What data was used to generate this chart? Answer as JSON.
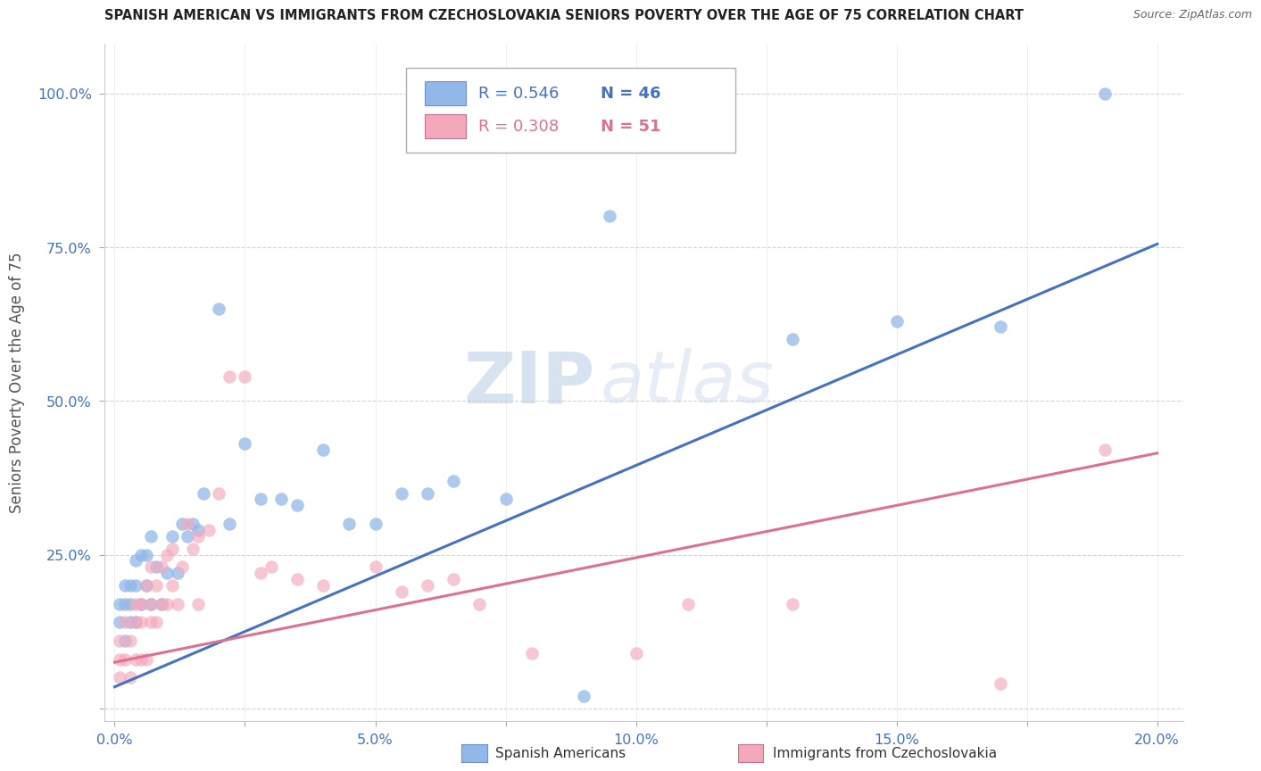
{
  "title": "SPANISH AMERICAN VS IMMIGRANTS FROM CZECHOSLOVAKIA SENIORS POVERTY OVER THE AGE OF 75 CORRELATION CHART",
  "source": "Source: ZipAtlas.com",
  "ylabel": "Seniors Poverty Over the Age of 75",
  "x_tick_labels": [
    "0.0%",
    "",
    "5.0%",
    "",
    "10.0%",
    "",
    "15.0%",
    "",
    "20.0%"
  ],
  "x_tick_positions": [
    0.0,
    0.025,
    0.05,
    0.075,
    0.1,
    0.125,
    0.15,
    0.175,
    0.2
  ],
  "y_tick_labels": [
    "",
    "25.0%",
    "50.0%",
    "75.0%",
    "100.0%"
  ],
  "y_tick_positions": [
    0.0,
    0.25,
    0.5,
    0.75,
    1.0
  ],
  "xlim": [
    -0.002,
    0.205
  ],
  "ylim": [
    -0.02,
    1.08
  ],
  "blue_color": "#92b8e8",
  "pink_color": "#f4a8bc",
  "blue_line_color": "#4472c4",
  "pink_line_color": "#e07090",
  "tick_color": "#4472c4",
  "grid_color": "#d0d0d0",
  "background_color": "#ffffff",
  "legend_blue_R": "R = 0.546",
  "legend_blue_N": "N = 46",
  "legend_pink_R": "R = 0.308",
  "legend_pink_N": "N = 51",
  "legend_label_blue": "Spanish Americans",
  "legend_label_pink": "Immigrants from Czechoslovakia",
  "watermark_zip": "ZIP",
  "watermark_atlas": "atlas",
  "blue_scatter_x": [
    0.001,
    0.001,
    0.002,
    0.002,
    0.002,
    0.003,
    0.003,
    0.003,
    0.004,
    0.004,
    0.004,
    0.005,
    0.005,
    0.006,
    0.006,
    0.007,
    0.007,
    0.008,
    0.009,
    0.01,
    0.011,
    0.012,
    0.013,
    0.014,
    0.015,
    0.016,
    0.017,
    0.02,
    0.022,
    0.025,
    0.028,
    0.032,
    0.035,
    0.04,
    0.045,
    0.05,
    0.055,
    0.06,
    0.065,
    0.075,
    0.09,
    0.095,
    0.13,
    0.15,
    0.17,
    0.19
  ],
  "blue_scatter_y": [
    0.14,
    0.17,
    0.11,
    0.17,
    0.2,
    0.14,
    0.17,
    0.2,
    0.14,
    0.2,
    0.24,
    0.17,
    0.25,
    0.2,
    0.25,
    0.17,
    0.28,
    0.23,
    0.17,
    0.22,
    0.28,
    0.22,
    0.3,
    0.28,
    0.3,
    0.29,
    0.35,
    0.65,
    0.3,
    0.43,
    0.34,
    0.34,
    0.33,
    0.42,
    0.3,
    0.3,
    0.35,
    0.35,
    0.37,
    0.34,
    0.02,
    0.8,
    0.6,
    0.63,
    0.62,
    1.0
  ],
  "pink_scatter_x": [
    0.001,
    0.001,
    0.001,
    0.002,
    0.002,
    0.003,
    0.003,
    0.004,
    0.004,
    0.004,
    0.005,
    0.005,
    0.005,
    0.006,
    0.006,
    0.007,
    0.007,
    0.007,
    0.008,
    0.008,
    0.009,
    0.009,
    0.01,
    0.01,
    0.011,
    0.011,
    0.012,
    0.013,
    0.014,
    0.015,
    0.016,
    0.016,
    0.018,
    0.02,
    0.022,
    0.025,
    0.028,
    0.03,
    0.035,
    0.04,
    0.05,
    0.055,
    0.06,
    0.065,
    0.07,
    0.08,
    0.1,
    0.11,
    0.13,
    0.17,
    0.19
  ],
  "pink_scatter_y": [
    0.05,
    0.08,
    0.11,
    0.08,
    0.14,
    0.05,
    0.11,
    0.08,
    0.14,
    0.17,
    0.08,
    0.14,
    0.17,
    0.08,
    0.2,
    0.14,
    0.17,
    0.23,
    0.14,
    0.2,
    0.17,
    0.23,
    0.17,
    0.25,
    0.2,
    0.26,
    0.17,
    0.23,
    0.3,
    0.26,
    0.17,
    0.28,
    0.29,
    0.35,
    0.54,
    0.54,
    0.22,
    0.23,
    0.21,
    0.2,
    0.23,
    0.19,
    0.2,
    0.21,
    0.17,
    0.09,
    0.09,
    0.17,
    0.17,
    0.04,
    0.42
  ],
  "blue_line_x": [
    0.0,
    0.2
  ],
  "blue_line_y": [
    0.035,
    0.755
  ],
  "pink_line_x": [
    0.0,
    0.2
  ],
  "pink_line_y": [
    0.075,
    0.415
  ]
}
